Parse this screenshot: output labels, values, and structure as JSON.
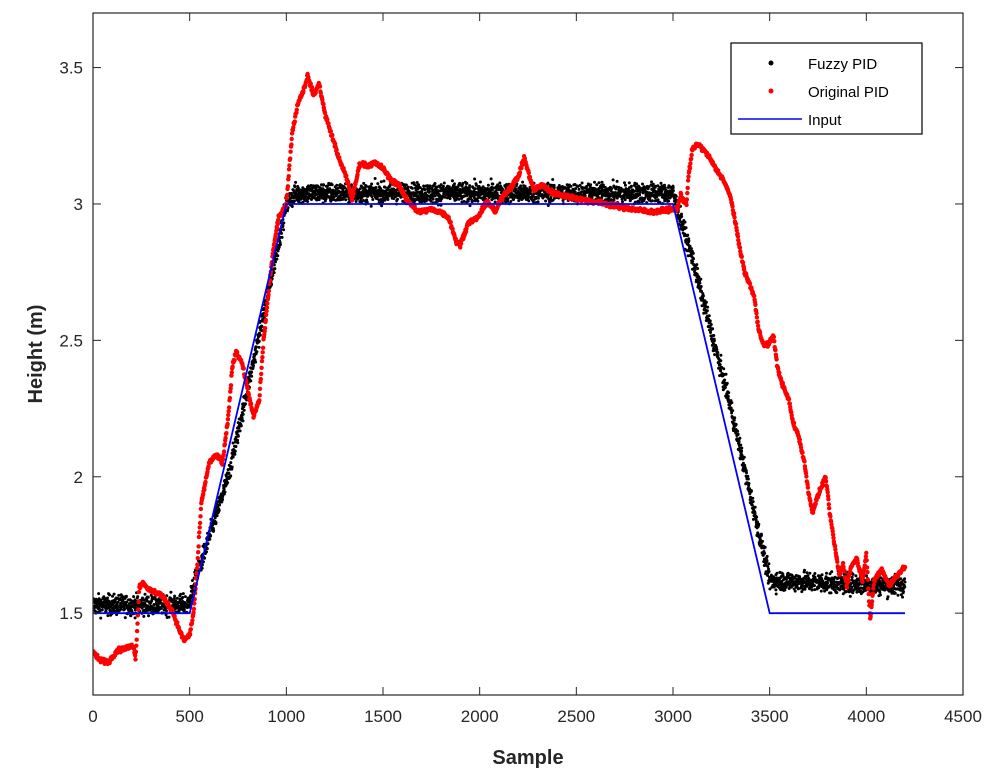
{
  "chart_data": {
    "type": "scatter",
    "title": "",
    "xlabel": "Sample",
    "ylabel": "Height (m)",
    "xlim": [
      0,
      4500
    ],
    "ylim": [
      1.2,
      3.7
    ],
    "x_ticks": [
      0,
      500,
      1000,
      1500,
      2000,
      2500,
      3000,
      3500,
      4000,
      4500
    ],
    "y_ticks": [
      1.5,
      2,
      2.5,
      3,
      3.5
    ],
    "grid": false,
    "legend_position": "top-right",
    "series": [
      {
        "name": "Fuzzy PID",
        "type": "scatter",
        "color": "#000000",
        "noise": 0.035,
        "points": [
          [
            0,
            1.53
          ],
          [
            490,
            1.53
          ],
          [
            700,
            2.0
          ],
          [
            900,
            2.65
          ],
          [
            1000,
            3.0
          ],
          [
            1050,
            3.04
          ],
          [
            3000,
            3.04
          ],
          [
            3100,
            2.8
          ],
          [
            3300,
            2.25
          ],
          [
            3500,
            1.62
          ],
          [
            4200,
            1.6
          ]
        ]
      },
      {
        "name": "Original PID",
        "type": "scatter",
        "color": "#ff0000",
        "points": [
          [
            0,
            1.36
          ],
          [
            30,
            1.33
          ],
          [
            80,
            1.32
          ],
          [
            120,
            1.36
          ],
          [
            160,
            1.37
          ],
          [
            210,
            1.38
          ],
          [
            220,
            1.33
          ],
          [
            240,
            1.6
          ],
          [
            260,
            1.61
          ],
          [
            300,
            1.58
          ],
          [
            350,
            1.57
          ],
          [
            380,
            1.54
          ],
          [
            410,
            1.51
          ],
          [
            440,
            1.45
          ],
          [
            470,
            1.4
          ],
          [
            500,
            1.42
          ],
          [
            520,
            1.5
          ],
          [
            540,
            1.68
          ],
          [
            560,
            1.9
          ],
          [
            600,
            2.05
          ],
          [
            640,
            2.08
          ],
          [
            670,
            2.05
          ],
          [
            700,
            2.22
          ],
          [
            720,
            2.4
          ],
          [
            740,
            2.46
          ],
          [
            770,
            2.42
          ],
          [
            800,
            2.32
          ],
          [
            830,
            2.22
          ],
          [
            860,
            2.28
          ],
          [
            880,
            2.48
          ],
          [
            900,
            2.62
          ],
          [
            930,
            2.82
          ],
          [
            960,
            2.95
          ],
          [
            1000,
            3.0
          ],
          [
            1030,
            3.26
          ],
          [
            1060,
            3.37
          ],
          [
            1090,
            3.42
          ],
          [
            1110,
            3.47
          ],
          [
            1140,
            3.4
          ],
          [
            1170,
            3.44
          ],
          [
            1200,
            3.33
          ],
          [
            1240,
            3.24
          ],
          [
            1280,
            3.15
          ],
          [
            1310,
            3.1
          ],
          [
            1340,
            3.02
          ],
          [
            1360,
            3.08
          ],
          [
            1380,
            3.15
          ],
          [
            1420,
            3.14
          ],
          [
            1460,
            3.15
          ],
          [
            1500,
            3.13
          ],
          [
            1540,
            3.09
          ],
          [
            1580,
            3.07
          ],
          [
            1620,
            3.02
          ],
          [
            1680,
            2.97
          ],
          [
            1750,
            2.98
          ],
          [
            1800,
            2.97
          ],
          [
            1840,
            2.95
          ],
          [
            1880,
            2.86
          ],
          [
            1900,
            2.85
          ],
          [
            1940,
            2.93
          ],
          [
            1990,
            2.95
          ],
          [
            2040,
            3.01
          ],
          [
            2080,
            2.97
          ],
          [
            2120,
            3.03
          ],
          [
            2160,
            3.06
          ],
          [
            2200,
            3.1
          ],
          [
            2230,
            3.17
          ],
          [
            2250,
            3.12
          ],
          [
            2280,
            3.05
          ],
          [
            2320,
            3.07
          ],
          [
            2380,
            3.04
          ],
          [
            2440,
            3.03
          ],
          [
            2500,
            3.02
          ],
          [
            2580,
            3.01
          ],
          [
            2650,
            3.0
          ],
          [
            2720,
            2.99
          ],
          [
            2800,
            2.98
          ],
          [
            2900,
            2.97
          ],
          [
            2980,
            2.98
          ],
          [
            3020,
            2.98
          ],
          [
            3040,
            3.03
          ],
          [
            3070,
            3.0
          ],
          [
            3080,
            3.1
          ],
          [
            3100,
            3.2
          ],
          [
            3130,
            3.22
          ],
          [
            3180,
            3.18
          ],
          [
            3220,
            3.13
          ],
          [
            3260,
            3.09
          ],
          [
            3300,
            3.02
          ],
          [
            3340,
            2.86
          ],
          [
            3370,
            2.75
          ],
          [
            3400,
            2.7
          ],
          [
            3420,
            2.66
          ],
          [
            3440,
            2.55
          ],
          [
            3470,
            2.48
          ],
          [
            3500,
            2.49
          ],
          [
            3520,
            2.52
          ],
          [
            3540,
            2.4
          ],
          [
            3570,
            2.33
          ],
          [
            3600,
            2.28
          ],
          [
            3620,
            2.2
          ],
          [
            3650,
            2.15
          ],
          [
            3680,
            2.05
          ],
          [
            3700,
            1.95
          ],
          [
            3720,
            1.87
          ],
          [
            3760,
            1.95
          ],
          [
            3790,
            2.0
          ],
          [
            3810,
            1.87
          ],
          [
            3840,
            1.73
          ],
          [
            3860,
            1.64
          ],
          [
            3880,
            1.68
          ],
          [
            3900,
            1.6
          ],
          [
            3920,
            1.67
          ],
          [
            3950,
            1.7
          ],
          [
            3980,
            1.62
          ],
          [
            4000,
            1.72
          ],
          [
            4020,
            1.47
          ],
          [
            4040,
            1.62
          ],
          [
            4080,
            1.66
          ],
          [
            4120,
            1.6
          ],
          [
            4160,
            1.64
          ],
          [
            4200,
            1.67
          ]
        ]
      },
      {
        "name": "Input",
        "type": "line",
        "color": "#0000ff",
        "points": [
          [
            0,
            1.5
          ],
          [
            500,
            1.5
          ],
          [
            1000,
            3.0
          ],
          [
            3000,
            3.0
          ],
          [
            3500,
            1.5
          ],
          [
            4200,
            1.5
          ]
        ]
      }
    ]
  }
}
